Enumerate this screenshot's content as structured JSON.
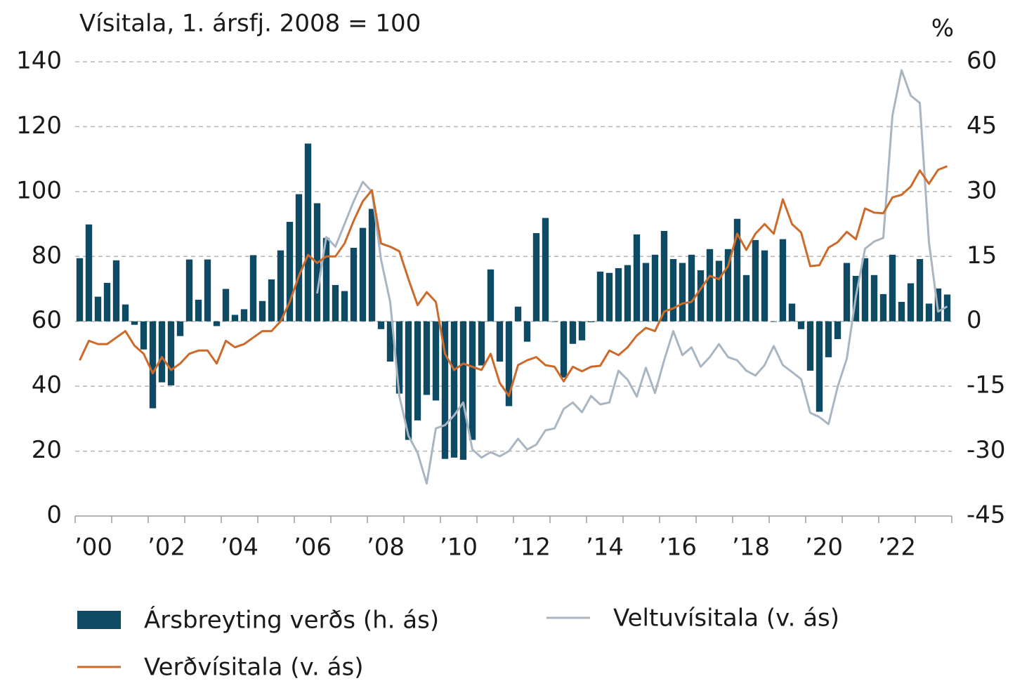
{
  "chart_data": {
    "type": "bar-line",
    "title": "Vísitala, 1. ársfj. 2008 = 100",
    "y2_label": "%",
    "categories": [
      "’00",
      null,
      null,
      null,
      null,
      null,
      null,
      null,
      "’02",
      null,
      null,
      null,
      null,
      null,
      null,
      null,
      "’04",
      null,
      null,
      null,
      null,
      null,
      null,
      null,
      "’06",
      null,
      null,
      null,
      null,
      null,
      null,
      null,
      "’08",
      null,
      null,
      null,
      null,
      null,
      null,
      null,
      "’10",
      null,
      null,
      null,
      null,
      null,
      null,
      null,
      "’12",
      null,
      null,
      null,
      null,
      null,
      null,
      null,
      "’14",
      null,
      null,
      null,
      null,
      null,
      null,
      null,
      "’16",
      null,
      null,
      null,
      null,
      null,
      null,
      null,
      "’18",
      null,
      null,
      null,
      null,
      null,
      null,
      null,
      "’20",
      null,
      null,
      null,
      null,
      null,
      null,
      null,
      "’22",
      null,
      null,
      null,
      null,
      null,
      null,
      null
    ],
    "series": [
      {
        "name": "Ársbreyting verðs (h. ás)",
        "type": "bar",
        "axis": "y2",
        "color": "#0e4a64",
        "values": [
          14.6,
          22.4,
          5.7,
          8.9,
          14.1,
          3.9,
          -0.8,
          -6.5,
          -20.1,
          -14.1,
          -14.8,
          -3.4,
          14.3,
          5.0,
          14.3,
          -1.1,
          7.5,
          1.5,
          2.8,
          15.3,
          4.7,
          9.7,
          16.4,
          23.0,
          29.4,
          41.1,
          27.3,
          19.3,
          8.4,
          7.0,
          17.0,
          21.6,
          26.0,
          -1.8,
          -9.3,
          -16.7,
          -27.4,
          -22.9,
          -17.0,
          -18.3,
          -31.8,
          -31.5,
          -32.0,
          -27.4,
          -10.2,
          12.0,
          -9.3,
          -19.6,
          3.4,
          -4.7,
          20.4,
          23.9,
          0,
          -13.0,
          -5.2,
          -4.4,
          -0.2,
          11.5,
          11.2,
          12.3,
          13.0,
          20.1,
          13.5,
          15.4,
          20.9,
          14.4,
          13.5,
          15.4,
          11.8,
          16.7,
          14.0,
          16.7,
          23.7,
          10.7,
          18.8,
          16.4,
          0,
          19.0,
          4.1,
          -1.8,
          -11.4,
          -20.9,
          -8.3,
          -4.1,
          13.5,
          10.5,
          14.6,
          10.7,
          6.3,
          15.4,
          4.5,
          8.8,
          14.4,
          4.1,
          7.6,
          6.2
        ]
      },
      {
        "name": "Veltuvísitala (v. ás)",
        "type": "line",
        "axis": "y",
        "color": "#a9b6c2",
        "values": [
          null,
          null,
          null,
          null,
          null,
          null,
          null,
          null,
          null,
          null,
          null,
          null,
          null,
          null,
          null,
          null,
          null,
          null,
          null,
          null,
          null,
          null,
          null,
          null,
          null,
          null,
          68.6,
          86,
          83,
          90,
          97,
          103,
          100,
          79,
          66,
          37,
          24.7,
          19.5,
          10,
          27,
          28,
          31,
          35,
          20.5,
          18,
          19.7,
          18.4,
          20,
          23.8,
          20.5,
          22,
          26.4,
          27,
          33,
          35,
          32,
          37,
          34.4,
          35,
          44.8,
          42,
          36.8,
          45.7,
          37.9,
          48,
          57,
          49.6,
          52,
          46,
          49,
          53,
          49,
          48,
          44.8,
          43.3,
          46.5,
          52.4,
          46.5,
          44.4,
          42.2,
          31.8,
          30.5,
          28.3,
          39.8,
          48.5,
          67.7,
          82.4,
          84.6,
          85.7,
          123.4,
          137.4,
          129.6,
          127.3,
          84.4,
          63,
          64.6
        ]
      },
      {
        "name": "Verðvísitala (v. ás)",
        "type": "line",
        "axis": "y",
        "color": "#cd6a2a",
        "values": [
          48,
          54,
          53,
          53,
          55,
          57,
          52.5,
          50,
          44,
          49,
          45,
          47,
          50,
          51,
          51,
          47,
          54,
          52,
          53,
          55,
          57,
          57,
          60,
          66,
          74,
          80.5,
          78,
          80,
          80,
          84,
          91,
          97,
          100.4,
          84,
          83,
          81.6,
          73,
          65,
          69,
          66,
          50,
          45,
          47,
          46,
          45,
          50,
          41,
          37,
          46.5,
          48,
          49,
          46.5,
          46,
          41.5,
          46,
          44.6,
          46,
          46.3,
          51,
          49.6,
          52,
          55.6,
          58,
          57,
          63,
          64,
          65.5,
          66,
          70,
          74,
          73,
          77,
          87,
          82,
          87,
          90,
          87,
          97.6,
          90,
          87.4,
          77,
          77.3,
          82.7,
          84.4,
          87.6,
          85.3,
          94.8,
          93.5,
          93.3,
          98.2,
          99,
          101.5,
          106.5,
          102.4,
          106.7,
          107.8
        ]
      }
    ],
    "ylim": [
      0,
      140
    ],
    "yticks": [
      0,
      20,
      40,
      60,
      80,
      100,
      120,
      140
    ],
    "y2lim": [
      -45,
      60
    ],
    "y2ticks": [
      -45,
      -30,
      -15,
      0,
      15,
      30,
      45,
      60
    ],
    "grid": true
  }
}
